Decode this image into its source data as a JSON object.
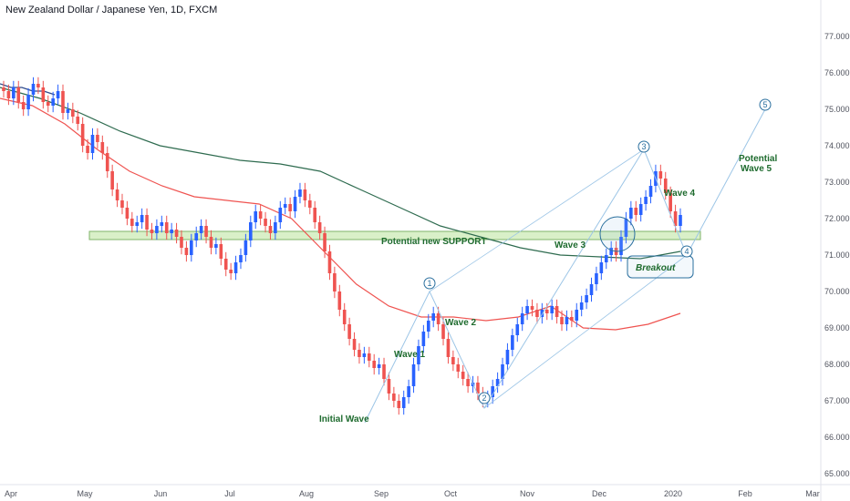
{
  "header": {
    "title": "New Zealand Dollar / Japanese Yen, 1D, FXCM"
  },
  "colors": {
    "up": "#2962ff",
    "down": "#ef5350",
    "ma_fast": "#2e4a8c",
    "ma_mid": "#ef5350",
    "ma_slow": "#2e6b4f",
    "zone_fill": "#d9f0c8",
    "zone_stroke": "#7fb36a",
    "wave_line": "#9cc5e6",
    "text_green": "#1e6b2e"
  },
  "annotations": {
    "support": "Potential new SUPPORT",
    "initial_wave": "Initial Wave",
    "wave1": "Wave 1",
    "wave2": "Wave 2",
    "wave3": "Wave 3",
    "wave4": "Wave 4",
    "potential": "Potential",
    "wave5": "Wave 5",
    "breakout": "Breakout",
    "n1": "1",
    "n2": "2",
    "n3": "3",
    "n4": "4",
    "n5": "5"
  },
  "chart_data": {
    "type": "candlestick",
    "title": "New Zealand Dollar / Japanese Yen, 1D, FXCM",
    "ylim": [
      64.7,
      78.0
    ],
    "y_ticks": [
      "65.000",
      "66.000",
      "67.000",
      "68.000",
      "69.000",
      "70.000",
      "71.000",
      "72.000",
      "73.000",
      "74.000",
      "75.000",
      "76.000",
      "77.000"
    ],
    "x_ticks": [
      "Apr",
      "May",
      "Jun",
      "Jul",
      "Aug",
      "Sep",
      "Oct",
      "Nov",
      "Dec",
      "2020",
      "Feb",
      "Mar"
    ],
    "support_zone": [
      71.3,
      71.5
    ],
    "close": [
      75.5,
      75.3,
      75.6,
      75.2,
      75.0,
      75.4,
      75.7,
      75.6,
      75.2,
      75.1,
      75.3,
      75.5,
      74.9,
      75.0,
      74.8,
      74.6,
      74.0,
      73.8,
      74.3,
      74.1,
      73.8,
      73.3,
      72.8,
      72.5,
      72.3,
      72.0,
      71.8,
      71.9,
      72.1,
      71.7,
      71.6,
      71.8,
      71.9,
      71.6,
      71.7,
      71.5,
      71.2,
      71.0,
      71.4,
      71.6,
      71.8,
      71.5,
      71.2,
      71.3,
      70.9,
      70.6,
      70.5,
      70.8,
      71.0,
      71.4,
      71.9,
      72.2,
      72.0,
      71.8,
      71.6,
      71.9,
      72.3,
      72.4,
      72.2,
      72.6,
      72.8,
      72.5,
      72.3,
      71.9,
      71.6,
      71.1,
      70.5,
      70.0,
      69.5,
      69.1,
      68.7,
      68.4,
      68.2,
      68.3,
      68.1,
      67.9,
      68.0,
      67.6,
      67.2,
      67.0,
      66.8,
      67.1,
      67.4,
      68.0,
      68.5,
      68.9,
      69.2,
      69.4,
      69.1,
      68.7,
      68.2,
      68.0,
      67.8,
      67.6,
      67.4,
      67.5,
      67.2,
      67.0,
      67.1,
      67.4,
      67.6,
      68.0,
      68.4,
      68.8,
      69.1,
      69.4,
      69.6,
      69.5,
      69.3,
      69.5,
      69.4,
      69.6,
      69.3,
      69.1,
      69.3,
      69.2,
      69.5,
      69.7,
      69.9,
      70.2,
      70.5,
      70.8,
      71.0,
      71.2,
      71.0,
      71.5,
      72.0,
      72.3,
      72.1,
      72.4,
      72.6,
      72.9,
      73.3,
      73.1,
      72.7,
      72.2,
      71.8,
      72.1
    ],
    "ma_fast": [
      75.7,
      75.6,
      75.6,
      75.5,
      75.5,
      75.4
    ],
    "ma_mid": [
      75.3,
      75.1,
      74.6,
      73.9,
      73.3,
      72.9,
      72.6,
      72.5,
      72.4,
      72.0,
      71.1,
      70.2,
      69.6,
      69.3,
      69.3,
      69.2,
      69.3,
      69.6,
      69.0,
      68.95,
      69.1,
      69.4
    ],
    "ma_slow": [
      75.6,
      75.3,
      74.9,
      74.4,
      74.0,
      73.8,
      73.6,
      73.5,
      73.3,
      72.8,
      72.3,
      71.8,
      71.5,
      71.2,
      71.0,
      70.95,
      70.9,
      71.1
    ],
    "waves": [
      {
        "label": "1",
        "value": 70.0
      },
      {
        "label": "2",
        "value": 66.8
      },
      {
        "label": "3",
        "value": 73.9
      },
      {
        "label": "4",
        "value": 71.0
      },
      {
        "label": "5",
        "value": 75.0
      }
    ]
  }
}
